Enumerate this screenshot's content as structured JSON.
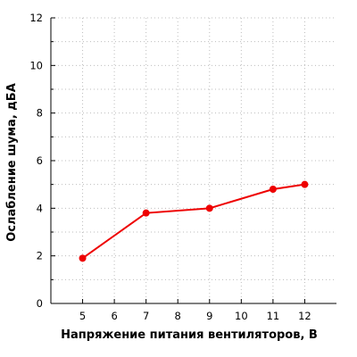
{
  "chart_data": {
    "type": "line",
    "title": "",
    "xlabel": "Напряжение питания вентиляторов, В",
    "ylabel": "Ослабление шума, дБА",
    "x": [
      5,
      7,
      9,
      11,
      12
    ],
    "series": [
      {
        "values": [
          1.9,
          3.8,
          4.0,
          4.8,
          5.0
        ],
        "color": "#ee0000"
      }
    ],
    "xlim": [
      4,
      13
    ],
    "ylim": [
      0,
      12
    ],
    "xticks": [
      "5",
      "6",
      "7",
      "8",
      "9",
      "10",
      "11",
      "12"
    ],
    "yticks": [
      "0",
      "2",
      "4",
      "6",
      "8",
      "10",
      "12"
    ],
    "grid": true,
    "grid_style": "dotted",
    "legend": "none"
  }
}
